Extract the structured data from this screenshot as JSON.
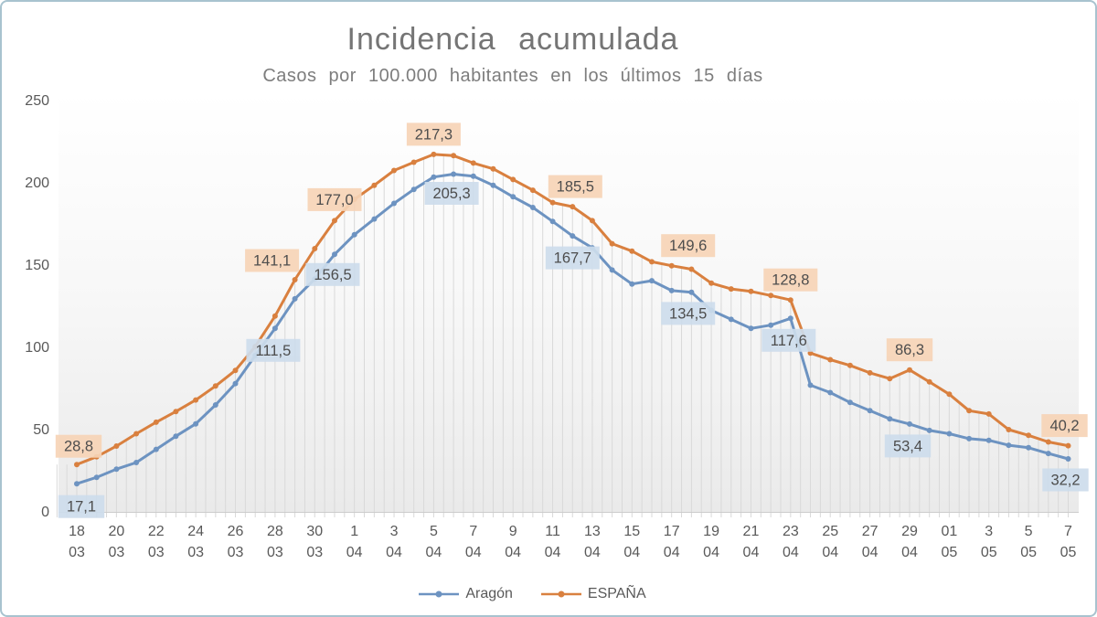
{
  "title": "Incidencia  acumulada",
  "subtitle": "Casos por 100.000  habitantes  en los últimos  15 días",
  "legend": [
    {
      "name": "Aragón",
      "color": "#6d93c1"
    },
    {
      "name": "ESPAÑA",
      "color": "#d9803f"
    }
  ],
  "colors": {
    "aragon_line": "#6d93c1",
    "espana_line": "#d9803f",
    "label_fill_aragon": "#cddcec",
    "label_fill_espana": "#f6d4b6",
    "label_text": "#4d4d4d",
    "axis_text": "#595959",
    "title_text": "#757575",
    "drop_line": "#d9d9d9",
    "baseline": "#cccccc",
    "border": "#a8c3cf"
  },
  "chart_data": {
    "type": "line",
    "title": "Incidencia acumulada",
    "subtitle": "Casos por 100.000 habitantes en los últimos 15 días",
    "ylim": [
      0,
      250
    ],
    "y_ticks": [
      0,
      50,
      100,
      150,
      200,
      250
    ],
    "grid": "vertical drop lines from ESPAÑA series to axis, no horizontal gridlines",
    "legend_position": "bottom center",
    "x_tick_labels": [
      [
        "18",
        "03"
      ],
      [
        "20",
        "03"
      ],
      [
        "22",
        "03"
      ],
      [
        "24",
        "03"
      ],
      [
        "26",
        "03"
      ],
      [
        "28",
        "03"
      ],
      [
        "30",
        "03"
      ],
      [
        "1",
        "04"
      ],
      [
        "3",
        "04"
      ],
      [
        "5",
        "04"
      ],
      [
        "7",
        "04"
      ],
      [
        "9",
        "04"
      ],
      [
        "11",
        "04"
      ],
      [
        "13",
        "04"
      ],
      [
        "15",
        "04"
      ],
      [
        "17",
        "04"
      ],
      [
        "19",
        "04"
      ],
      [
        "21",
        "04"
      ],
      [
        "23",
        "04"
      ],
      [
        "25",
        "04"
      ],
      [
        "27",
        "04"
      ],
      [
        "29",
        "04"
      ],
      [
        "01",
        "05"
      ],
      [
        "3",
        "05"
      ],
      [
        "5",
        "05"
      ],
      [
        "7",
        "05"
      ]
    ],
    "dates": [
      "18/03",
      "19/03",
      "20/03",
      "21/03",
      "22/03",
      "23/03",
      "24/03",
      "25/03",
      "26/03",
      "27/03",
      "28/03",
      "29/03",
      "30/03",
      "31/03",
      "01/04",
      "02/04",
      "03/04",
      "04/04",
      "05/04",
      "06/04",
      "07/04",
      "08/04",
      "09/04",
      "10/04",
      "11/04",
      "12/04",
      "13/04",
      "14/04",
      "15/04",
      "16/04",
      "17/04",
      "18/04",
      "19/04",
      "20/04",
      "21/04",
      "22/04",
      "23/04",
      "24/04",
      "25/04",
      "26/04",
      "27/04",
      "28/04",
      "29/04",
      "30/04",
      "01/05",
      "02/05",
      "03/05",
      "04/05",
      "05/05",
      "06/05",
      "07/05"
    ],
    "series": [
      {
        "name": "ESPAÑA",
        "color": "#d9803f",
        "values": [
          28.8,
          33.5,
          40.0,
          47.5,
          54.5,
          61.0,
          68.0,
          76.5,
          86.0,
          100.5,
          119.0,
          141.1,
          160.0,
          177.0,
          190.0,
          198.5,
          207.5,
          212.5,
          217.3,
          216.5,
          212.0,
          208.5,
          202.0,
          195.5,
          188.0,
          185.5,
          177.0,
          163.0,
          158.5,
          152.0,
          149.6,
          147.5,
          139.0,
          135.5,
          134.0,
          131.5,
          128.8,
          96.5,
          92.5,
          89.0,
          84.5,
          81.0,
          86.3,
          79.0,
          71.5,
          61.5,
          59.5,
          50.0,
          46.5,
          42.5,
          40.2
        ],
        "labels": [
          {
            "index": 0,
            "text": "28,8",
            "dx": 2,
            "dy": -20
          },
          {
            "index": 11,
            "text": "141,1",
            "dx": -25,
            "dy": -21
          },
          {
            "index": 13,
            "text": "177,0",
            "dx": 0,
            "dy": -23
          },
          {
            "index": 18,
            "text": "217,3",
            "dx": 0,
            "dy": -22
          },
          {
            "index": 25,
            "text": "185,5",
            "dx": 3,
            "dy": -22
          },
          {
            "index": 30,
            "text": "149,6",
            "dx": 18,
            "dy": -22
          },
          {
            "index": 36,
            "text": "128,8",
            "dx": 0,
            "dy": -22
          },
          {
            "index": 42,
            "text": "86,3",
            "dx": 0,
            "dy": -22
          },
          {
            "index": 50,
            "text": "40,2",
            "dx": -4,
            "dy": -22
          }
        ]
      },
      {
        "name": "Aragón",
        "color": "#6d93c1",
        "values": [
          17.1,
          21.0,
          26.0,
          30.0,
          38.0,
          46.0,
          53.5,
          65.0,
          78.0,
          95.0,
          111.5,
          129.5,
          141.5,
          156.5,
          168.5,
          178.0,
          187.5,
          196.0,
          203.5,
          205.3,
          204.0,
          198.5,
          191.5,
          185.0,
          176.5,
          167.7,
          160.5,
          147.0,
          138.5,
          140.5,
          134.5,
          133.5,
          122.5,
          117.0,
          111.5,
          113.5,
          117.6,
          77.0,
          72.5,
          66.5,
          61.5,
          56.5,
          53.4,
          49.5,
          47.5,
          44.5,
          43.5,
          40.5,
          39.0,
          35.5,
          32.2
        ],
        "labels": [
          {
            "index": 0,
            "text": "17,1",
            "dx": 5,
            "dy": 25
          },
          {
            "index": 10,
            "text": "111,5",
            "dx": -2,
            "dy": 24
          },
          {
            "index": 13,
            "text": "156,5",
            "dx": -2,
            "dy": 22
          },
          {
            "index": 19,
            "text": "205,3",
            "dx": -2,
            "dy": 21
          },
          {
            "index": 25,
            "text": "167,7",
            "dx": 0,
            "dy": 24
          },
          {
            "index": 30,
            "text": "134,5",
            "dx": 18,
            "dy": 25
          },
          {
            "index": 36,
            "text": "117,6",
            "dx": -2,
            "dy": 24
          },
          {
            "index": 42,
            "text": "53,4",
            "dx": -2,
            "dy": 24
          },
          {
            "index": 50,
            "text": "32,2",
            "dx": -3,
            "dy": 23
          }
        ]
      }
    ]
  }
}
